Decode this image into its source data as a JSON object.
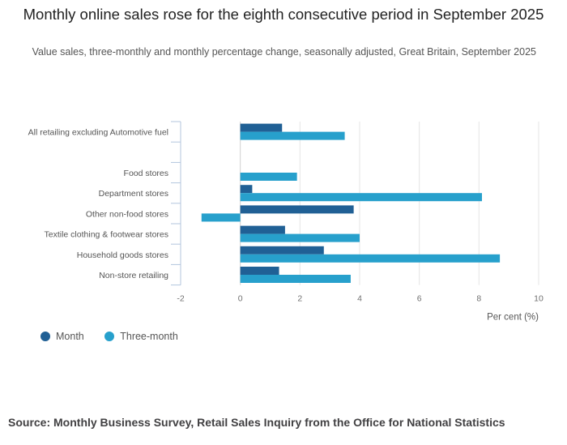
{
  "title": "Monthly online sales rose for the eighth consecutive period in September 2025",
  "subtitle": "Value sales, three-monthly and monthly percentage change, seasonally adjusted, Great Britain, September 2025",
  "source": "Source: Monthly Business Survey, Retail Sales Inquiry from the Office for National Statistics",
  "colors": {
    "month": "#206095",
    "three_month": "#27a0cc",
    "grid": "#e5e5e5",
    "axis": "#b3c6de"
  },
  "chart_data": {
    "type": "bar",
    "orientation": "horizontal",
    "title": "Monthly online sales rose for the eighth consecutive period in September 2025",
    "xlabel": "Per cent (%)",
    "ylabel": "",
    "xlim": [
      -2,
      10
    ],
    "xticks": [
      -2,
      0,
      2,
      4,
      6,
      8,
      10
    ],
    "grid": true,
    "legend": "bottom-left",
    "categories": [
      "All retailing excluding Automotive fuel",
      "",
      "Food stores",
      "Department stores",
      "Other non-food stores",
      "Textile clothing & footwear stores",
      "Household goods stores",
      "Non-store retailing"
    ],
    "series": [
      {
        "name": "Month",
        "values": [
          1.4,
          null,
          null,
          0.4,
          3.8,
          1.5,
          2.8,
          1.3
        ]
      },
      {
        "name": "Three-month",
        "values": [
          3.5,
          null,
          1.9,
          8.1,
          -1.3,
          4.0,
          8.7,
          3.7
        ]
      }
    ]
  }
}
